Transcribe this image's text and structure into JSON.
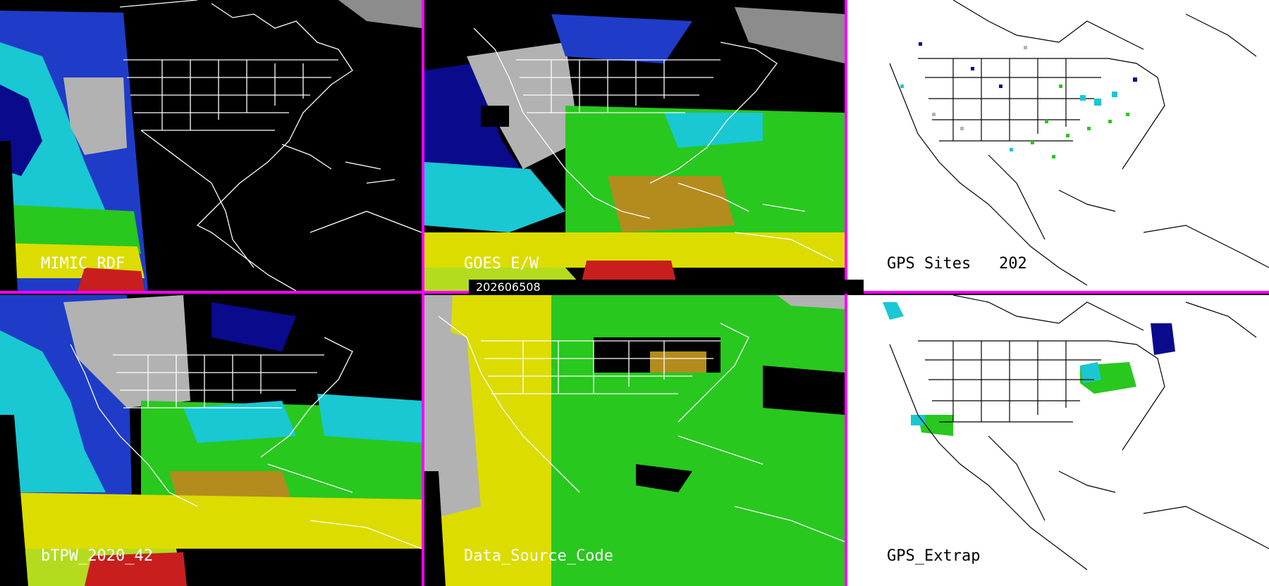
{
  "timestamp": "202606508",
  "panels": [
    {
      "id": "mimic",
      "label": "MIMIC RDF"
    },
    {
      "id": "goes",
      "label": "GOES E/W"
    },
    {
      "id": "gps-sites",
      "label": "GPS Sites",
      "count": "202"
    },
    {
      "id": "btpw",
      "label": "bTPW_2020_42"
    },
    {
      "id": "data-source",
      "label": "Data_Source_Code"
    },
    {
      "id": "gps-extrap",
      "label": "GPS_Extrap"
    }
  ],
  "colors": {
    "divider": "#ff00ff",
    "dark_background": "#000000",
    "light_background": "#ffffff",
    "map_lines_dark": "#ffffff",
    "map_lines_light": "#000000",
    "moisture_palette": [
      "#b2b2b2",
      "#0a0a8c",
      "#1e3cc8",
      "#19c8d2",
      "#28c81e",
      "#b4dc1e",
      "#dcdc00",
      "#b48c1e",
      "#c81e1e"
    ]
  }
}
